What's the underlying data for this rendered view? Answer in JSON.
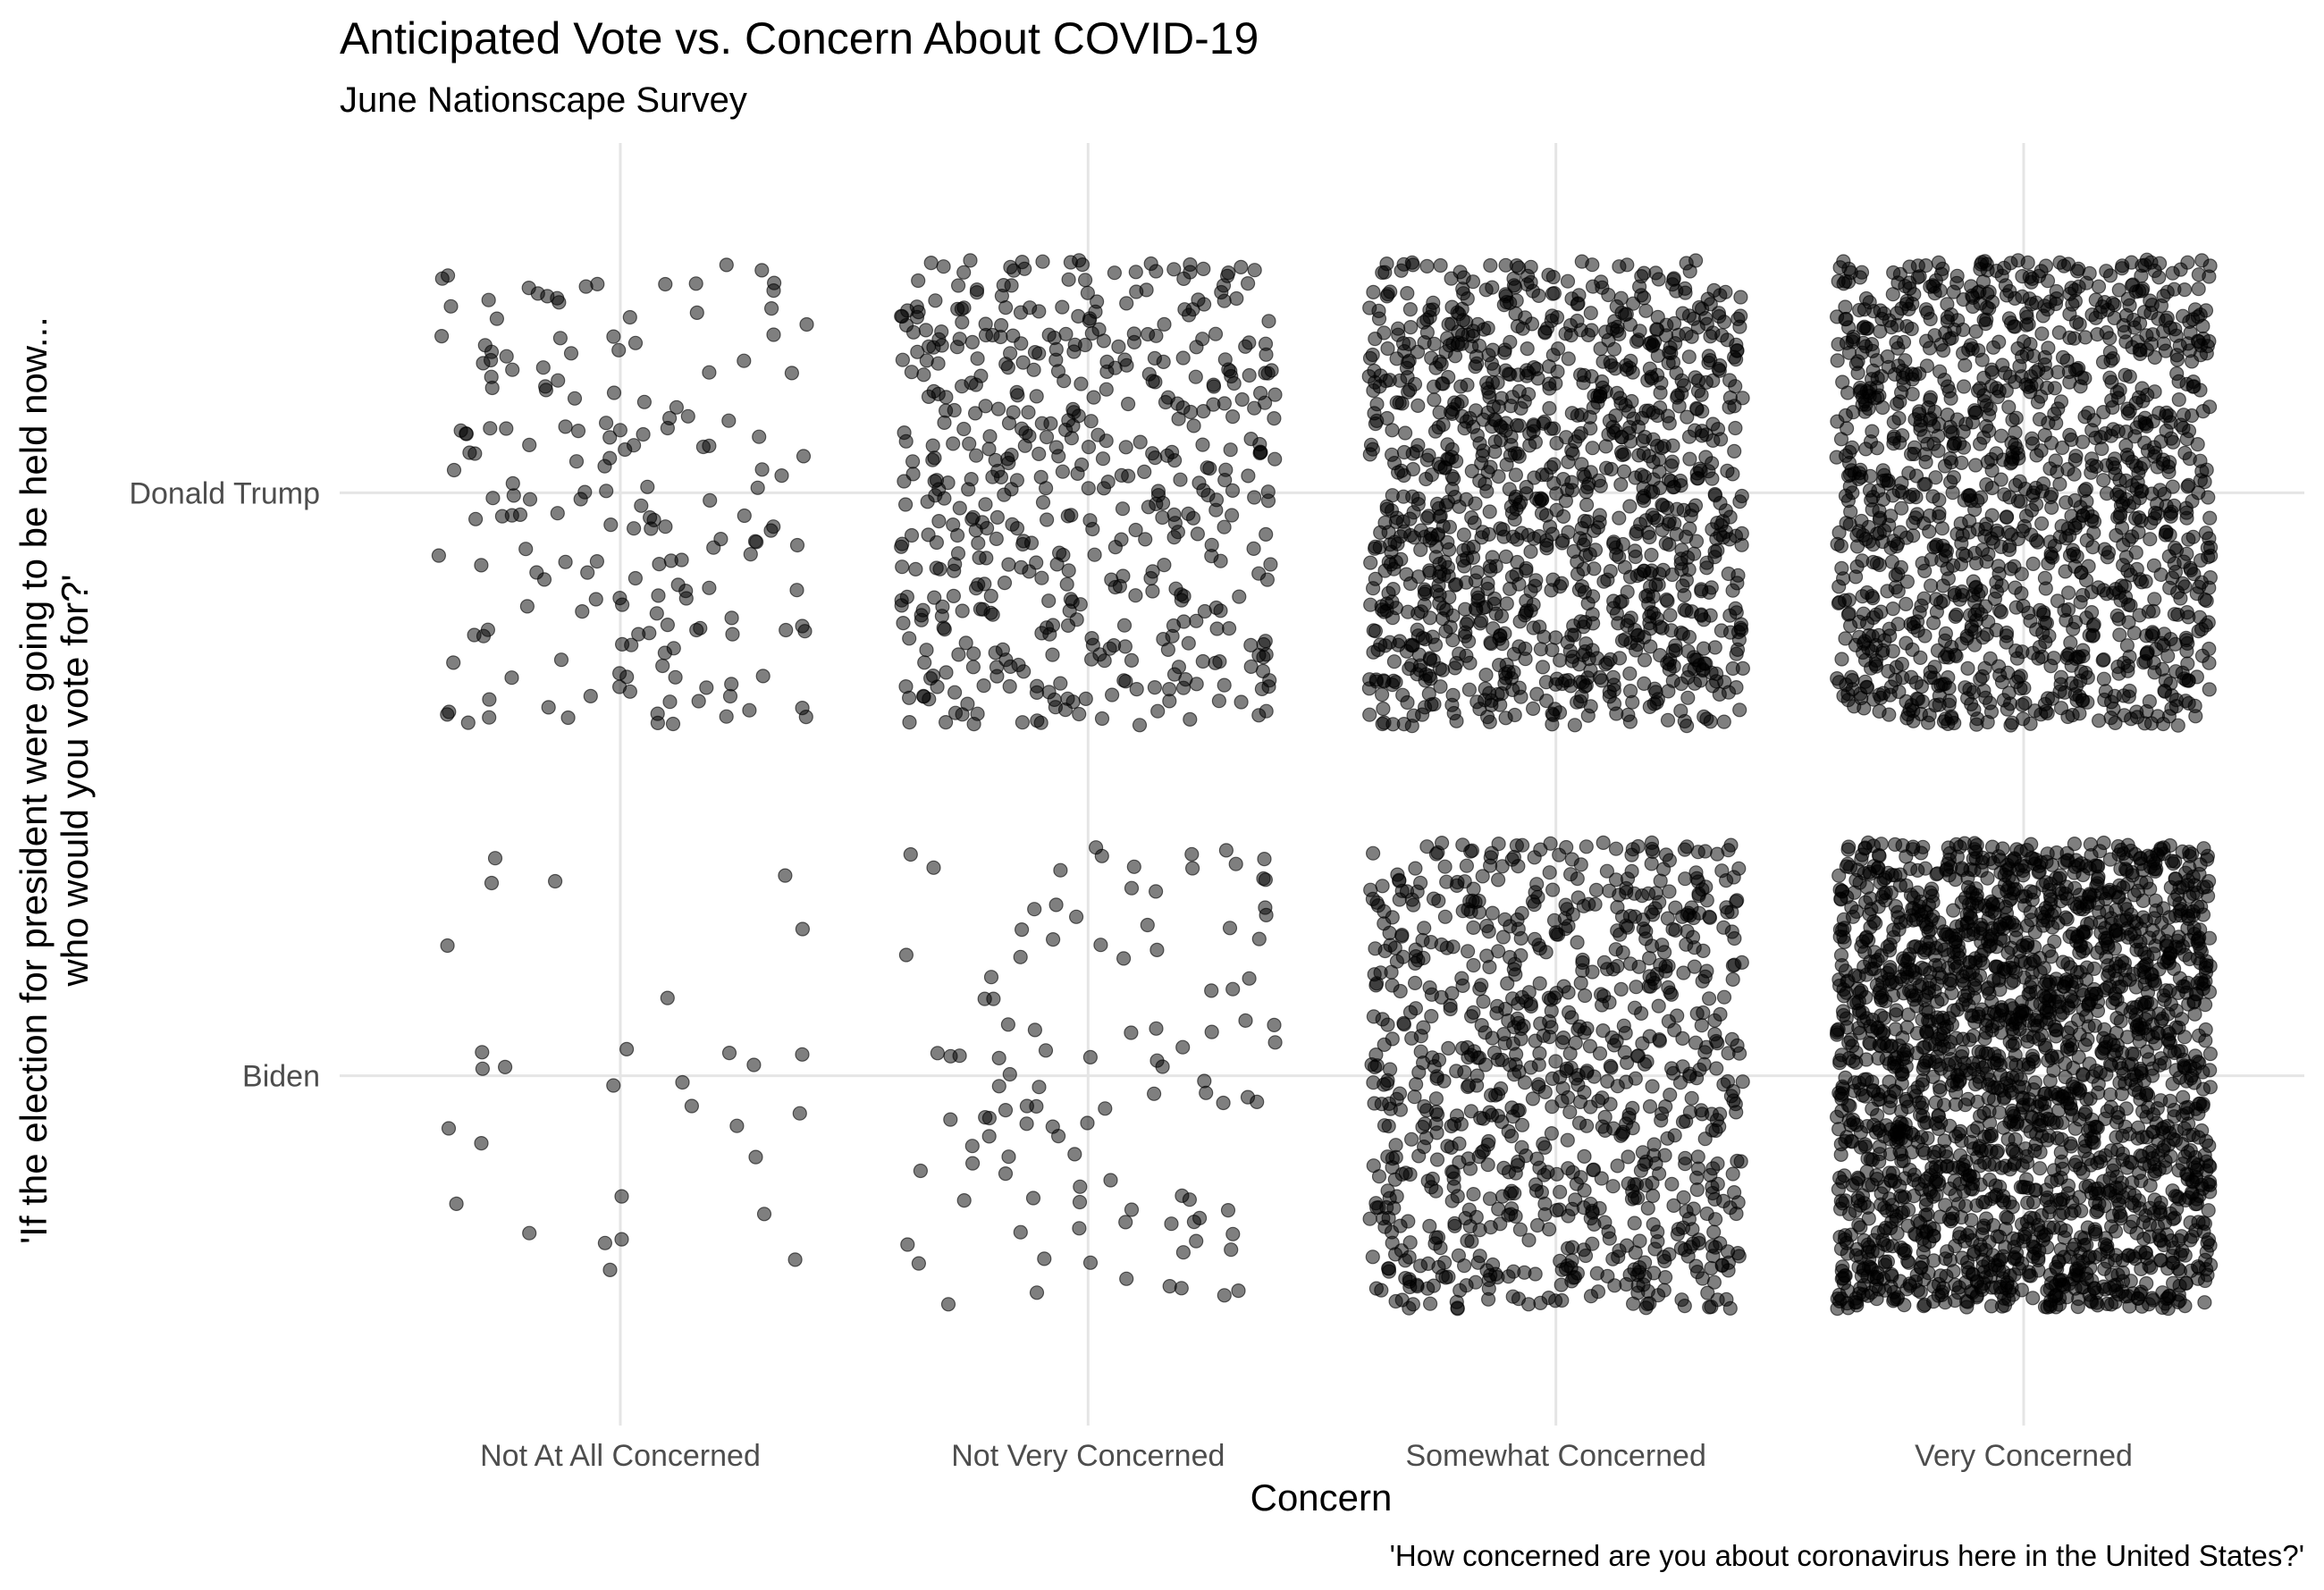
{
  "chart_data": {
    "type": "scatter",
    "title": "Anticipated Vote vs. Concern About COVID-19",
    "subtitle": "June Nationscape Survey",
    "xlabel": "Concern",
    "ylabel_lines": [
      "'If the election for president were going to be held now...",
      "who would you vote for?'"
    ],
    "caption": "'How concerned are you about coronavirus here in the United States?'",
    "x_categories": [
      "Not At All Concerned",
      "Not Very Concerned",
      "Somewhat Concerned",
      "Very Concerned"
    ],
    "y_categories": [
      "Biden",
      "Donald Trump"
    ],
    "jitter": {
      "width": 0.4,
      "height": 0.4
    },
    "point_alpha": 0.5,
    "grid": true,
    "legend": "none",
    "groups": [
      {
        "x": "Not At All Concerned",
        "y": "Donald Trump",
        "n": 180
      },
      {
        "x": "Not At All Concerned",
        "y": "Biden",
        "n": 30
      },
      {
        "x": "Not Very Concerned",
        "y": "Donald Trump",
        "n": 520
      },
      {
        "x": "Not Very Concerned",
        "y": "Biden",
        "n": 110
      },
      {
        "x": "Somewhat Concerned",
        "y": "Donald Trump",
        "n": 1200
      },
      {
        "x": "Somewhat Concerned",
        "y": "Biden",
        "n": 900
      },
      {
        "x": "Very Concerned",
        "y": "Donald Trump",
        "n": 1350
      },
      {
        "x": "Very Concerned",
        "y": "Biden",
        "n": 2300
      }
    ]
  }
}
